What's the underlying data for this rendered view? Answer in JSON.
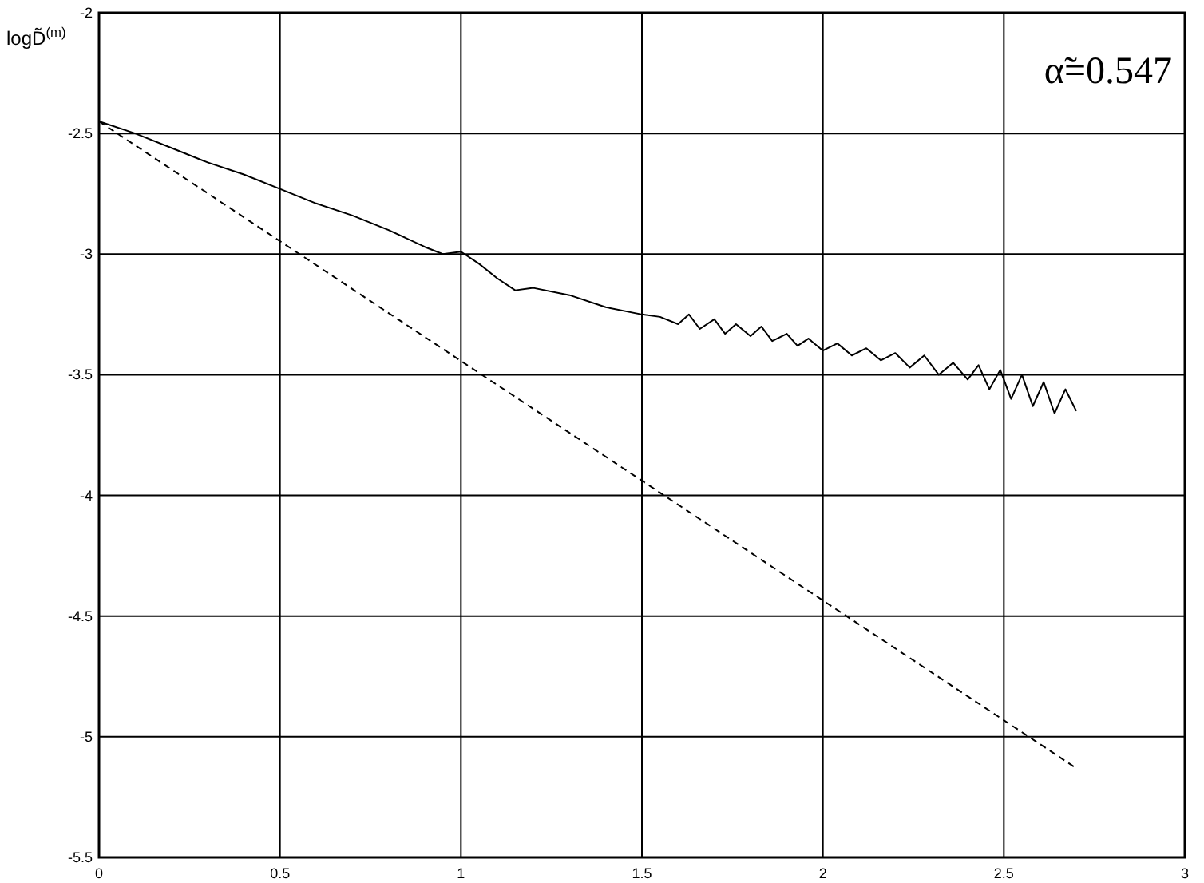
{
  "chart_data": {
    "type": "line",
    "ylabel": "logD̃$^{(m)}$",
    "annotations": [
      "α̃=0.547"
    ],
    "xlim": [
      0,
      3
    ],
    "ylim": [
      -5.5,
      -2
    ],
    "xticks": [
      0,
      0.5,
      1,
      1.5,
      2,
      2.5,
      3
    ],
    "yticks": [
      -5.5,
      -5,
      -4.5,
      -4,
      -3.5,
      -3,
      -2.5,
      -2
    ],
    "grid": true,
    "marker": "none",
    "series": [
      {
        "color": "#000000",
        "line_style": "solid",
        "x": [
          0,
          0.1,
          0.2,
          0.3,
          0.4,
          0.5,
          0.6,
          0.7,
          0.8,
          0.9,
          0.95,
          1.0,
          1.05,
          1.1,
          1.15,
          1.2,
          1.3,
          1.4,
          1.5,
          1.55,
          1.6,
          1.63,
          1.66,
          1.7,
          1.73,
          1.76,
          1.8,
          1.83,
          1.86,
          1.9,
          1.93,
          1.96,
          2.0,
          2.04,
          2.08,
          2.12,
          2.16,
          2.2,
          2.24,
          2.28,
          2.32,
          2.36,
          2.4,
          2.43,
          2.46,
          2.49,
          2.52,
          2.55,
          2.58,
          2.61,
          2.64,
          2.67,
          2.7
        ],
        "values": [
          -2.45,
          -2.5,
          -2.56,
          -2.62,
          -2.67,
          -2.73,
          -2.79,
          -2.84,
          -2.9,
          -2.97,
          -3.0,
          -2.99,
          -3.04,
          -3.1,
          -3.15,
          -3.14,
          -3.17,
          -3.22,
          -3.25,
          -3.26,
          -3.29,
          -3.25,
          -3.31,
          -3.27,
          -3.33,
          -3.29,
          -3.34,
          -3.3,
          -3.36,
          -3.33,
          -3.38,
          -3.35,
          -3.4,
          -3.37,
          -3.42,
          -3.39,
          -3.44,
          -3.41,
          -3.47,
          -3.42,
          -3.5,
          -3.45,
          -3.52,
          -3.46,
          -3.56,
          -3.48,
          -3.6,
          -3.5,
          -3.63,
          -3.53,
          -3.66,
          -3.56,
          -3.65
        ]
      },
      {
        "color": "#000000",
        "line_style": "dashed",
        "x": [
          0,
          2.7
        ],
        "values": [
          -2.45,
          -5.13
        ]
      }
    ]
  }
}
